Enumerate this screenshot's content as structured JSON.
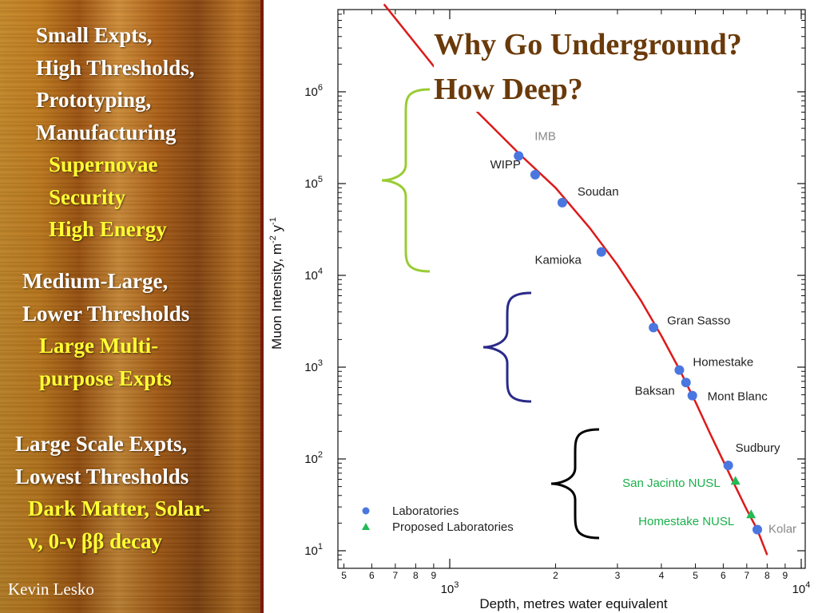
{
  "sidebar": {
    "group_small": {
      "lines": [
        "Small Expts,",
        "High Thresholds,",
        "Prototyping,",
        "Manufacturing"
      ],
      "uses": [
        "Supernovae",
        "Security",
        "High Energy"
      ]
    },
    "group_medium": {
      "lines": [
        "Medium-Large,",
        "Lower Thresholds"
      ],
      "uses": [
        "Large Multi-",
        "purpose Expts"
      ]
    },
    "group_large": {
      "lines": [
        "Large Scale Expts,",
        "Lowest Thresholds"
      ],
      "uses": [
        "Dark Matter, Solar-",
        "ν, 0-ν ββ decay"
      ]
    },
    "author": "Kevin Lesko"
  },
  "title": {
    "line1": "Why Go Underground?",
    "line2": "How Deep?"
  },
  "colors": {
    "curve": "#dd1a1a",
    "laboratory": "#4a76e0",
    "proposed": "#22bb55",
    "bracket_small": "#99cc33",
    "bracket_medium": "#2a2a88",
    "bracket_large": "#000000",
    "title": "#6b3a0a"
  },
  "chart_data": {
    "type": "scatter",
    "xlabel": "Depth, metres water equivalent",
    "ylabel": "Muon Intensity, m-2 y-1",
    "x_scale": "log",
    "y_scale": "log",
    "xlim": [
      400,
      11000
    ],
    "ylim": [
      7,
      10000000.0
    ],
    "x_major_ticks": [
      {
        "value": 1000,
        "label": "10",
        "exp": "3"
      },
      {
        "value": 10000,
        "label": "10",
        "exp": "4"
      }
    ],
    "x_minor_ticks": [
      {
        "value": 500,
        "label": "5"
      },
      {
        "value": 600,
        "label": "6"
      },
      {
        "value": 700,
        "label": "7"
      },
      {
        "value": 800,
        "label": "8"
      },
      {
        "value": 900,
        "label": "9"
      },
      {
        "value": 2000,
        "label": "2"
      },
      {
        "value": 3000,
        "label": "3"
      },
      {
        "value": 4000,
        "label": "4"
      },
      {
        "value": 5000,
        "label": "5"
      },
      {
        "value": 6000,
        "label": "6"
      },
      {
        "value": 7000,
        "label": "7"
      },
      {
        "value": 8000,
        "label": "8"
      },
      {
        "value": 9000,
        "label": "9"
      }
    ],
    "y_ticks": [
      {
        "value": 10,
        "label": "10",
        "exp": "1"
      },
      {
        "value": 100,
        "label": "10",
        "exp": "2"
      },
      {
        "value": 1000,
        "label": "10",
        "exp": "3"
      },
      {
        "value": 10000,
        "label": "10",
        "exp": "4"
      },
      {
        "value": 100000,
        "label": "10",
        "exp": "5"
      },
      {
        "value": 1000000,
        "label": "10",
        "exp": "6"
      }
    ],
    "curve": [
      [
        650,
        9000000
      ],
      [
        900,
        1900000
      ],
      [
        1200,
        600000
      ],
      [
        1600,
        200000
      ],
      [
        2000,
        90000
      ],
      [
        2500,
        33000
      ],
      [
        3000,
        13000
      ],
      [
        3500,
        5300
      ],
      [
        4000,
        2200
      ],
      [
        4500,
        950
      ],
      [
        5000,
        420
      ],
      [
        5500,
        190
      ],
      [
        6000,
        95
      ],
      [
        6500,
        50
      ],
      [
        7000,
        28
      ],
      [
        7500,
        17
      ],
      [
        8000,
        9
      ]
    ],
    "series": [
      {
        "name": "Laboratories",
        "marker": "circle",
        "points": [
          {
            "label": "IMB",
            "x": 1570,
            "y": 200000,
            "label_color": "gray"
          },
          {
            "label": "WIPP",
            "x": 1750,
            "y": 125000,
            "label_color": "dark"
          },
          {
            "label": "Soudan",
            "x": 2090,
            "y": 62000,
            "label_color": "dark"
          },
          {
            "label": "Kamioka",
            "x": 2700,
            "y": 18000,
            "label_color": "dark"
          },
          {
            "label": "Gran Sasso",
            "x": 3800,
            "y": 2700,
            "label_color": "dark"
          },
          {
            "label": "Homestake",
            "x": 4500,
            "y": 930,
            "label_color": "dark"
          },
          {
            "label": "Baksan",
            "x": 4700,
            "y": 680,
            "label_color": "dark"
          },
          {
            "label": "Mont Blanc",
            "x": 4900,
            "y": 490,
            "label_color": "dark"
          },
          {
            "label": "Sudbury",
            "x": 6200,
            "y": 85,
            "label_color": "dark"
          },
          {
            "label": "Kolar",
            "x": 7500,
            "y": 17,
            "label_color": "gray"
          }
        ]
      },
      {
        "name": "Proposed Laboratories",
        "marker": "triangle",
        "points": [
          {
            "label": "San Jacinto NUSL",
            "x": 6500,
            "y": 58,
            "label_color": "green"
          },
          {
            "label": "Homestake NUSL",
            "x": 7200,
            "y": 25,
            "label_color": "green"
          }
        ]
      }
    ],
    "legend": {
      "position": "bottom-left",
      "entries": [
        "Laboratories",
        "Proposed Laboratories"
      ]
    },
    "grid": false
  }
}
